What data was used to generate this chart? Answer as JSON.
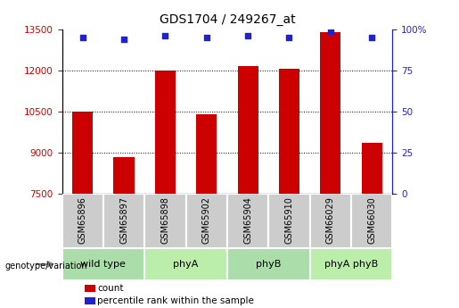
{
  "title": "GDS1704 / 249267_at",
  "samples": [
    "GSM65896",
    "GSM65897",
    "GSM65898",
    "GSM65902",
    "GSM65904",
    "GSM65910",
    "GSM66029",
    "GSM66030"
  ],
  "counts": [
    10500,
    8850,
    12000,
    10400,
    12150,
    12050,
    13400,
    9350
  ],
  "percentile_ranks": [
    95,
    94,
    96,
    95,
    96,
    95,
    99,
    95
  ],
  "groups": [
    {
      "label": "wild type",
      "start": 0,
      "end": 2
    },
    {
      "label": "phyA",
      "start": 2,
      "end": 4
    },
    {
      "label": "phyB",
      "start": 4,
      "end": 6
    },
    {
      "label": "phyA phyB",
      "start": 6,
      "end": 8
    }
  ],
  "group_colors": [
    "#aaddaa",
    "#bbeeaa",
    "#aaddaa",
    "#bbeeaa"
  ],
  "ymin": 7500,
  "ymax": 13500,
  "y_ticks_left": [
    7500,
    9000,
    10500,
    12000,
    13500
  ],
  "y_ticks_right": [
    0,
    25,
    50,
    75,
    100
  ],
  "bar_color": "#cc0000",
  "dot_color": "#2222cc",
  "label_count": "count",
  "label_pct": "percentile rank within the sample",
  "genotype_label": "genotype/variation"
}
